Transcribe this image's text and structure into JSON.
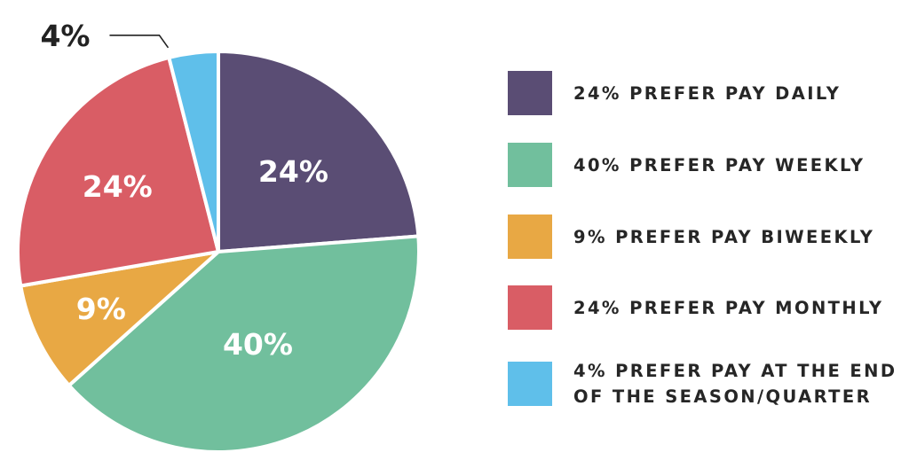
{
  "chart_data": {
    "type": "pie",
    "slices": [
      {
        "label": "24% PREFER PAY DAILY",
        "value": 24,
        "display": "24%",
        "color": "#5a4d74"
      },
      {
        "label": "40% PREFER PAY WEEKLY",
        "value": 40,
        "display": "40%",
        "color": "#71bf9d"
      },
      {
        "label": "9% PREFER PAY BIWEEKLY",
        "value": 9,
        "display": "9%",
        "color": "#e8a844"
      },
      {
        "label": "24% PREFER PAY MONTHLY",
        "value": 24,
        "display": "24%",
        "color": "#d95d65"
      },
      {
        "label": "4% PREFER PAY AT THE END\nOF THE SEASON/QUARTER",
        "value": 4,
        "display": "4%",
        "color": "#5fbfea"
      }
    ],
    "legend_position": "right"
  }
}
